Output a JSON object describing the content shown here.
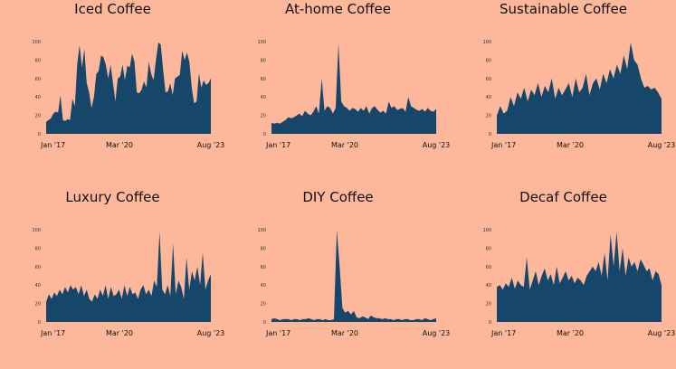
{
  "colors": {
    "background": "#FDB89C",
    "fill": "#16476B"
  },
  "chart_data": [
    {
      "type": "area",
      "title": "Iced Coffee",
      "x_labels": [
        "Jan '17",
        "Mar '20",
        "Aug '23"
      ],
      "y_ticks": [
        "0",
        "20",
        "40",
        "60",
        "80",
        "100"
      ],
      "ylim": [
        0,
        100
      ],
      "values": [
        13,
        15,
        17,
        22,
        24,
        23,
        42,
        15,
        14,
        16,
        15,
        38,
        30,
        75,
        96,
        72,
        92,
        55,
        45,
        28,
        40,
        65,
        68,
        85,
        83,
        75,
        60,
        75,
        55,
        35,
        60,
        62,
        75,
        58,
        74,
        72,
        87,
        78,
        45,
        44,
        48,
        57,
        50,
        78,
        65,
        58,
        80,
        99,
        97,
        70,
        45,
        46,
        55,
        42,
        60,
        62,
        64,
        90,
        80,
        88,
        78,
        50,
        33,
        35,
        66,
        50,
        58,
        53,
        55,
        60
      ]
    },
    {
      "type": "area",
      "title": "At-home Coffee",
      "x_labels": [
        "Jan '17",
        "Mar '20",
        "Aug '23"
      ],
      "y_ticks": [
        "0",
        "20",
        "40",
        "60",
        "80",
        "100"
      ],
      "ylim": [
        0,
        100
      ],
      "values": [
        12,
        11,
        12,
        11,
        13,
        15,
        18,
        17,
        18,
        20,
        22,
        19,
        25,
        22,
        20,
        24,
        30,
        22,
        60,
        25,
        30,
        28,
        22,
        28,
        98,
        35,
        30,
        28,
        25,
        28,
        27,
        24,
        28,
        25,
        30,
        22,
        28,
        30,
        26,
        23,
        25,
        22,
        35,
        28,
        30,
        26,
        27,
        28,
        24,
        40,
        30,
        28,
        26,
        25,
        27,
        24,
        28,
        25,
        24,
        27
      ]
    },
    {
      "type": "area",
      "title": "Sustainable Coffee",
      "x_labels": [
        "Jan '17",
        "Mar '20",
        "Aug '23"
      ],
      "y_ticks": [
        "0",
        "20",
        "40",
        "60",
        "80",
        "100"
      ],
      "ylim": [
        0,
        100
      ],
      "values": [
        20,
        30,
        22,
        25,
        40,
        30,
        45,
        38,
        50,
        35,
        48,
        42,
        55,
        40,
        52,
        45,
        60,
        38,
        50,
        42,
        48,
        55,
        40,
        60,
        45,
        50,
        65,
        42,
        55,
        60,
        48,
        65,
        55,
        70,
        60,
        75,
        65,
        85,
        70,
        99,
        80,
        75,
        60,
        50,
        52,
        48,
        50,
        45,
        38
      ]
    },
    {
      "type": "area",
      "title": "Luxury Coffee",
      "x_labels": [
        "Jan '17",
        "Mar '20",
        "Aug '23"
      ],
      "y_ticks": [
        "0",
        "20",
        "40",
        "60",
        "80",
        "100"
      ],
      "ylim": [
        0,
        100
      ],
      "values": [
        22,
        30,
        25,
        32,
        28,
        35,
        30,
        38,
        32,
        40,
        35,
        38,
        30,
        40,
        28,
        35,
        25,
        22,
        30,
        25,
        35,
        28,
        40,
        25,
        38,
        28,
        30,
        35,
        25,
        40,
        28,
        38,
        30,
        32,
        25,
        35,
        40,
        30,
        35,
        28,
        45,
        38,
        98,
        35,
        30,
        40,
        28,
        85,
        30,
        45,
        38,
        25,
        70,
        35,
        55,
        45,
        60,
        40,
        75,
        35,
        45,
        52
      ]
    },
    {
      "type": "area",
      "title": "DIY Coffee",
      "x_labels": [
        "Jan '17",
        "Mar '20",
        "Aug '23"
      ],
      "y_ticks": [
        "0",
        "20",
        "40",
        "60",
        "80",
        "100"
      ],
      "ylim": [
        0,
        100
      ],
      "values": [
        3,
        4,
        3,
        2,
        3,
        3,
        3,
        2,
        3,
        3,
        2,
        3,
        3,
        4,
        3,
        2,
        3,
        3,
        2,
        3,
        2,
        2,
        3,
        100,
        60,
        15,
        10,
        12,
        8,
        12,
        5,
        4,
        6,
        5,
        3,
        7,
        5,
        4,
        4,
        3,
        4,
        3,
        3,
        2,
        3,
        3,
        2,
        3,
        3,
        2,
        2,
        3,
        3,
        2,
        4,
        3,
        2,
        3,
        4
      ]
    },
    {
      "type": "area",
      "title": "Decaf Coffee",
      "x_labels": [
        "Jan '17",
        "Mar '20",
        "Aug '23"
      ],
      "y_ticks": [
        "0",
        "20",
        "40",
        "60",
        "80",
        "100"
      ],
      "ylim": [
        0,
        100
      ],
      "values": [
        38,
        40,
        35,
        42,
        38,
        48,
        36,
        45,
        40,
        38,
        70,
        35,
        45,
        55,
        40,
        50,
        58,
        45,
        52,
        40,
        60,
        42,
        48,
        55,
        45,
        50,
        42,
        48,
        45,
        40,
        50,
        55,
        60,
        55,
        65,
        50,
        75,
        45,
        95,
        60,
        98,
        55,
        80,
        50,
        70,
        60,
        65,
        55,
        68,
        62,
        55,
        58,
        45,
        55,
        52,
        40
      ]
    }
  ]
}
